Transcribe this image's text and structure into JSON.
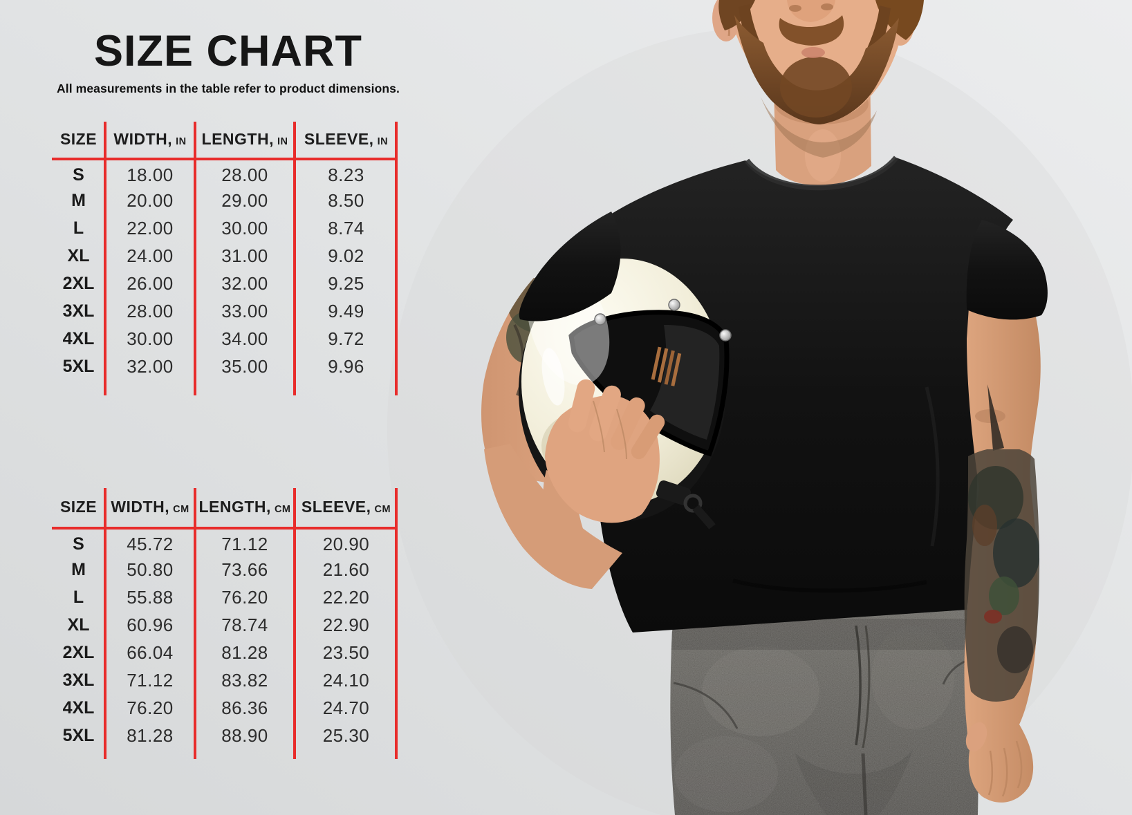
{
  "header": {
    "title": "SIZE CHART",
    "subtitle": "All measurements in the table refer to product dimensions."
  },
  "tables": {
    "inches": {
      "columns": [
        {
          "label": "SIZE",
          "unit": ""
        },
        {
          "label": "WIDTH,",
          "unit": "IN"
        },
        {
          "label": "LENGTH,",
          "unit": "IN"
        },
        {
          "label": "SLEEVE,",
          "unit": "IN"
        }
      ],
      "rows": [
        [
          "S",
          "18.00",
          "28.00",
          "8.23"
        ],
        [
          "M",
          "20.00",
          "29.00",
          "8.50"
        ],
        [
          "L",
          "22.00",
          "30.00",
          "8.74"
        ],
        [
          "XL",
          "24.00",
          "31.00",
          "9.02"
        ],
        [
          "2XL",
          "26.00",
          "32.00",
          "9.25"
        ],
        [
          "3XL",
          "28.00",
          "33.00",
          "9.49"
        ],
        [
          "4XL",
          "30.00",
          "34.00",
          "9.72"
        ],
        [
          "5XL",
          "32.00",
          "35.00",
          "9.96"
        ]
      ]
    },
    "cm": {
      "columns": [
        {
          "label": "SIZE",
          "unit": ""
        },
        {
          "label": "WIDTH,",
          "unit": "CM"
        },
        {
          "label": "LENGTH,",
          "unit": "CM"
        },
        {
          "label": "SLEEVE,",
          "unit": "CM"
        }
      ],
      "rows": [
        [
          "S",
          "45.72",
          "71.12",
          "20.90"
        ],
        [
          "M",
          "50.80",
          "73.66",
          "21.60"
        ],
        [
          "L",
          "55.88",
          "76.20",
          "22.20"
        ],
        [
          "XL",
          "60.96",
          "78.74",
          "22.90"
        ],
        [
          "2XL",
          "66.04",
          "81.28",
          "23.50"
        ],
        [
          "3XL",
          "71.12",
          "83.82",
          "24.10"
        ],
        [
          "4XL",
          "76.20",
          "86.36",
          "24.70"
        ],
        [
          "5XL",
          "81.28",
          "88.90",
          "25.30"
        ]
      ]
    }
  },
  "colors": {
    "accent_red": "#e82c2b",
    "text": "#1f1f1f",
    "background": "#e2e4e5",
    "helmet_cream": "#f2eeda",
    "shirt_black": "#141414"
  },
  "illustration": {
    "description": "Bearded man in a black t-shirt and gray jeans holding a cream retro full-face helmet under his arm"
  }
}
